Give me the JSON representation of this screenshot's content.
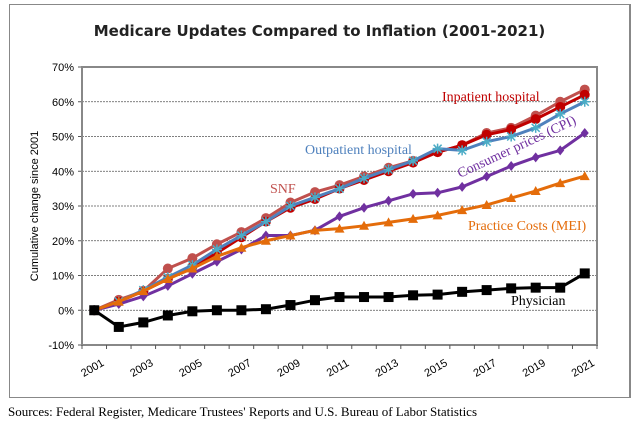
{
  "chart_data": {
    "type": "line",
    "title": "Medicare Updates Compared to Inflation (2001-2021)",
    "ylabel": "Cumulative change since 2001",
    "xlabel": "",
    "ylim": [
      -10,
      70
    ],
    "y_ticks": [
      "-10%",
      "0%",
      "10%",
      "20%",
      "30%",
      "40%",
      "50%",
      "60%",
      "70%"
    ],
    "x_tick_labels": [
      "2001",
      "2003",
      "2005",
      "2007",
      "2009",
      "2011",
      "2013",
      "2015",
      "2017",
      "2019",
      "2021"
    ],
    "x": [
      2001,
      2002,
      2003,
      2004,
      2005,
      2006,
      2007,
      2008,
      2009,
      2010,
      2011,
      2012,
      2013,
      2014,
      2015,
      2016,
      2017,
      2018,
      2019,
      2020,
      2021
    ],
    "grid": "horizontal dashed",
    "legend": "inline labels",
    "series": [
      {
        "name": "SNF",
        "color": "#c0504d",
        "marker": "circle",
        "values": [
          0,
          3,
          5.5,
          12,
          15,
          19,
          22.5,
          26.5,
          31,
          34,
          36,
          38.5,
          41,
          43,
          45.5,
          47.5,
          51,
          52.5,
          56,
          60,
          63.5
        ]
      },
      {
        "name": "Inpatient hospital",
        "color": "#c00000",
        "marker": "circle",
        "values": [
          0,
          2.5,
          5.5,
          9,
          12.5,
          16.5,
          21,
          25.5,
          29.5,
          32,
          35,
          37.5,
          40,
          42.5,
          45.5,
          47.5,
          50.5,
          52,
          55,
          58.5,
          62
        ]
      },
      {
        "name": "Outpatient hospital",
        "color": "#4f81bd",
        "marker": "star",
        "values": [
          0,
          2.5,
          5.8,
          9.5,
          13,
          17.5,
          21.5,
          25.5,
          30,
          32.5,
          35,
          38,
          40.5,
          43,
          46.5,
          46,
          48.5,
          50,
          52.5,
          56.5,
          60
        ]
      },
      {
        "name": "Consumer prices (CPI)",
        "color": "#7030a0",
        "marker": "diamond",
        "values": [
          0,
          1.8,
          4,
          7,
          10.5,
          14,
          17.5,
          21.5,
          21.5,
          23,
          27,
          29.5,
          31.5,
          33.5,
          33.8,
          35.5,
          38.5,
          41.5,
          44,
          46,
          51
        ]
      },
      {
        "name": "Practice Costs (MEI)",
        "color": "#e46c0a",
        "marker": "triangle",
        "values": [
          0,
          2.5,
          5.5,
          9,
          12,
          15.5,
          18,
          20,
          21.5,
          23,
          23.5,
          24.3,
          25.3,
          26.3,
          27.3,
          28.8,
          30.3,
          32.3,
          34.3,
          36.6,
          38.6
        ]
      },
      {
        "name": "Physician",
        "color": "#000000",
        "marker": "square",
        "values": [
          0,
          -4.8,
          -3.5,
          -1.5,
          -0.3,
          0,
          0,
          0.3,
          1.5,
          2.9,
          3.8,
          3.8,
          3.8,
          4.3,
          4.5,
          5.3,
          5.8,
          6.3,
          6.5,
          6.5,
          10.6
        ]
      }
    ]
  },
  "source": "Sources:  Federal Register, Medicare Trustees' Reports and U.S. Bureau of Labor Statistics"
}
